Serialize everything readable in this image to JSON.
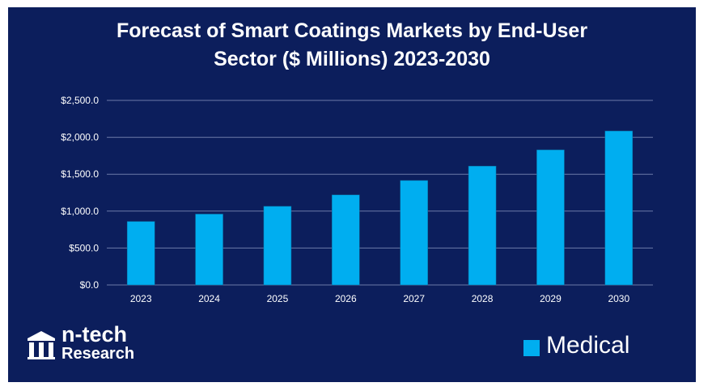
{
  "chart_data": {
    "type": "bar",
    "title_lines": [
      "Forecast of Smart Coatings Markets by End-User",
      "Sector ($ Millions) 2023-2030"
    ],
    "categories": [
      "2023",
      "2024",
      "2025",
      "2026",
      "2027",
      "2028",
      "2029",
      "2030"
    ],
    "series": [
      {
        "name": "Medical",
        "values": [
          860,
          960,
          1065,
          1220,
          1415,
          1610,
          1830,
          2085
        ]
      }
    ],
    "yticks": [
      0,
      500,
      1000,
      1500,
      2000,
      2500
    ],
    "ytick_labels": [
      "$0.0",
      "$500.0",
      "$1,000.0",
      "$1,500.0",
      "$2,000.0",
      "$2,500.0"
    ],
    "ylim": [
      0,
      2500
    ],
    "grid": true,
    "legend_position": "bottom-right",
    "colors": {
      "background": "#0c1e5c",
      "bar": "#00aef0",
      "grid": "#6b7aa8",
      "text": "#ffffff"
    }
  },
  "brand": {
    "name": "n-tech",
    "sub": "Research"
  }
}
